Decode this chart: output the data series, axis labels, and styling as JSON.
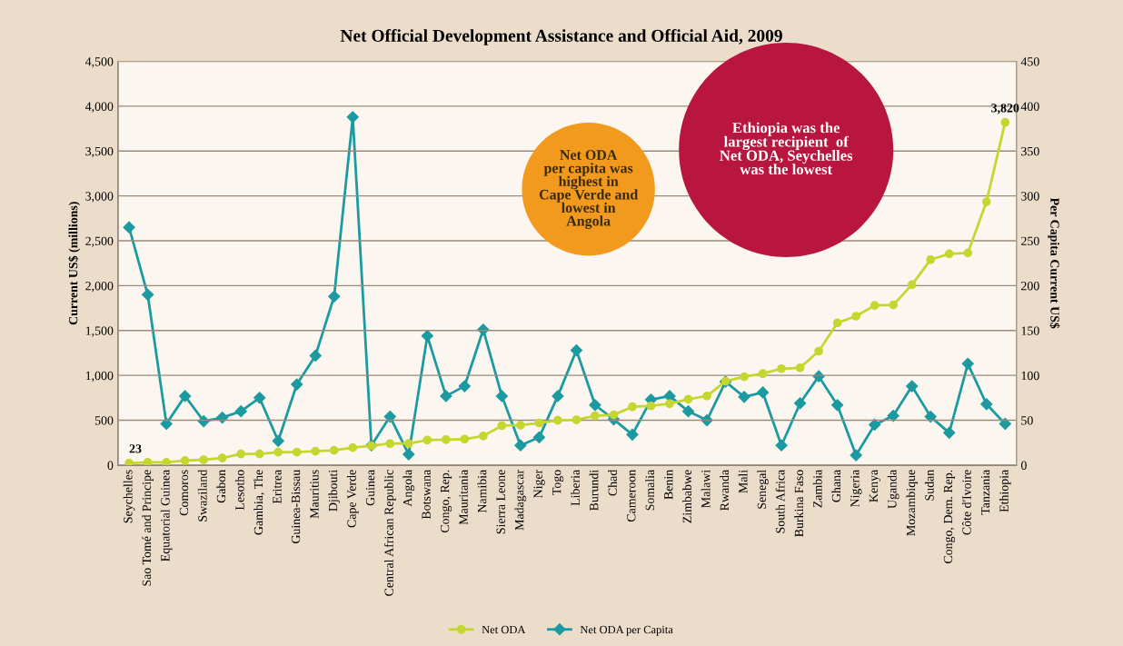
{
  "chart_data": {
    "type": "line",
    "title": "Net Official Development Assistance and Official Aid, 2009",
    "ylabel": "Current US$ (millions)",
    "y2label": "Per Capita Current US$",
    "categories": [
      "Seychelles",
      "Sao Tomé and Principe",
      "Equatorial Guinea",
      "Comoros",
      "Swaziland",
      "Gabon",
      "Lesotho",
      "Gambia, The",
      "Eritrea",
      "Guinea-Bissau",
      "Mauritius",
      "Djibouti",
      "Cape Verde",
      "Guinea",
      "Central African Republic",
      "Angola",
      "Botswana",
      "Congo, Rep.",
      "Mauritania",
      "Namibia",
      "Sierra Leone",
      "Madagascar",
      "Niger",
      "Togo",
      "Liberia",
      "Burundi",
      "Chad",
      "Cameroon",
      "Somalia",
      "Benin",
      "Zimbabwe",
      "Malawi",
      "Rwanda",
      "Mali",
      "Senegal",
      "South Africa",
      "Burkina Faso",
      "Zambia",
      "Ghana",
      "Nigeria",
      "Kenya",
      "Uganda",
      "Mozambique",
      "Sudan",
      "Congo, Dem. Rep.",
      "Côte d'Ivoire",
      "Tanzania",
      "Ethiopia"
    ],
    "series": [
      {
        "name": "Net ODA",
        "color": "#c5d630",
        "marker": "circle",
        "values": [
          23,
          30,
          30,
          50,
          60,
          80,
          125,
          125,
          145,
          145,
          155,
          165,
          195,
          215,
          240,
          240,
          280,
          285,
          290,
          325,
          440,
          445,
          470,
          500,
          505,
          550,
          560,
          650,
          660,
          685,
          735,
          770,
          935,
          985,
          1020,
          1075,
          1085,
          1270,
          1585,
          1660,
          1780,
          1785,
          2010,
          2290,
          2355,
          2365,
          2935,
          3820
        ]
      },
      {
        "name": "Net ODA per Capita",
        "color": "#1b9aa0",
        "marker": "diamond",
        "axis": "y2",
        "values": [
          265,
          190,
          46,
          77,
          49,
          53,
          60,
          75,
          27,
          90,
          122,
          188,
          388,
          22,
          54,
          12,
          144,
          77,
          88,
          151,
          77,
          22,
          31,
          77,
          128,
          67,
          51,
          34,
          73,
          77,
          60,
          50,
          93,
          76,
          81,
          22,
          69,
          99,
          67,
          11,
          45,
          55,
          88,
          54,
          36,
          113,
          68,
          46
        ]
      }
    ],
    "ylim": [
      0,
      4500
    ],
    "yticks": [
      0,
      {
        "value": 500,
        "label": "500"
      },
      {
        "value": 1000,
        "label": "1,000"
      },
      {
        "value": 1500,
        "label": "1,500"
      },
      {
        "value": 2000,
        "label": "2,000"
      },
      {
        "value": 2500,
        "label": "2,500"
      },
      {
        "value": 3000,
        "label": "3,000"
      },
      {
        "value": 3500,
        "label": "3,500"
      },
      {
        "value": 4000,
        "label": "4,000"
      },
      {
        "value": 4500,
        "label": "4,500"
      }
    ],
    "y2lim": [
      0,
      450
    ],
    "y2ticks": [
      0,
      50,
      100,
      150,
      200,
      250,
      300,
      350,
      400,
      450
    ],
    "annotations": [
      {
        "text": "23",
        "x": "Seychelles",
        "y": 23
      },
      {
        "text": "3,820",
        "x": "Ethiopia",
        "y": 3820
      },
      "Ethiopia was the\nlargest recipient  of\nNet ODA, Seychelles\nwas the lowest",
      "Net ODA\nper capita was\nhighest in\nCape Verde and\nlowest in\nAngola"
    ],
    "grid": "y",
    "legend": "bottom",
    "line_style": "solid"
  }
}
